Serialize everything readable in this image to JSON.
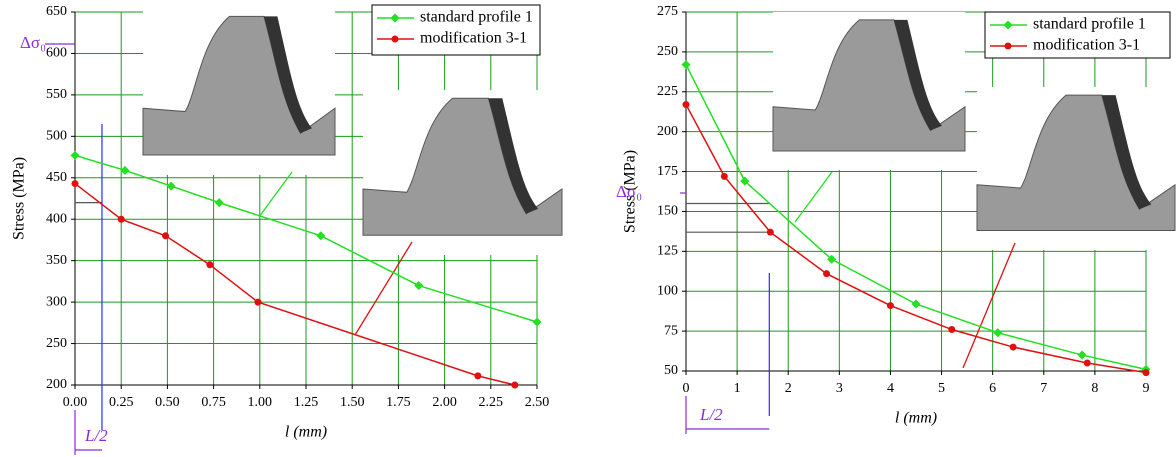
{
  "chart_data": [
    {
      "type": "line",
      "x_label": "l (mm)",
      "y_label": "Stress (MPa)",
      "xlim": [
        0,
        2.5
      ],
      "ylim": [
        200,
        650
      ],
      "xticks": [
        {
          "value": 0,
          "label": "0.00"
        },
        {
          "value": 0.25,
          "label": "0.25"
        },
        {
          "value": 0.5,
          "label": "0.50"
        },
        {
          "value": 0.75,
          "label": "0.75"
        },
        {
          "value": 1,
          "label": "1.00"
        },
        {
          "value": 1.25,
          "label": "1.25"
        },
        {
          "value": 1.5,
          "label": "1.50"
        },
        {
          "value": 1.75,
          "label": "1.75"
        },
        {
          "value": 2,
          "label": "2.00"
        },
        {
          "value": 2.25,
          "label": "2.25"
        },
        {
          "value": 2.5,
          "label": "2.50"
        }
      ],
      "yticks": [
        200,
        250,
        300,
        350,
        400,
        450,
        500,
        550,
        600,
        650
      ],
      "grid": true,
      "legend": "top-right",
      "annotations": [
        "Δσ₀",
        "L/2"
      ],
      "ref_x": 0.146,
      "ref_y": [
        420
      ],
      "series": [
        {
          "name": "standard profile 1",
          "color": "#22e022",
          "marker": "diamond",
          "x": [
            0,
            0.27,
            0.52,
            0.78,
            1.33,
            1.86,
            2.5
          ],
          "values": [
            477,
            459,
            440,
            420,
            380,
            320,
            276
          ]
        },
        {
          "name": "modification 3-1",
          "color": "#e01010",
          "marker": "circle",
          "x": [
            0,
            0.25,
            0.49,
            0.73,
            0.99,
            2.18,
            2.38
          ],
          "values": [
            443,
            400,
            380,
            345,
            300,
            211,
            200
          ]
        }
      ]
    },
    {
      "type": "line",
      "x_label": "l (mm)",
      "y_label": "Stress (MPa)",
      "xlim": [
        0,
        9
      ],
      "ylim": [
        50,
        275
      ],
      "xticks": [
        0,
        1,
        2,
        3,
        4,
        5,
        6,
        7,
        8,
        9
      ],
      "yticks": [
        50,
        75,
        100,
        125,
        150,
        175,
        200,
        225,
        250,
        275
      ],
      "grid": true,
      "legend": "top-right",
      "annotations": [
        "Δσ₀",
        "L/2"
      ],
      "ref_x": 1.63,
      "ref_y": [
        155,
        137
      ],
      "series": [
        {
          "name": "standard profile 1",
          "color": "#22e022",
          "marker": "diamond",
          "x": [
            0,
            1.15,
            2.85,
            4.5,
            6.1,
            7.75,
            9
          ],
          "values": [
            242,
            169,
            120,
            92,
            74,
            60,
            51
          ]
        },
        {
          "name": "modification 3-1",
          "color": "#e01010",
          "marker": "circle",
          "x": [
            0,
            0.75,
            1.65,
            2.75,
            4,
            5.2,
            6.4,
            7.85,
            9
          ],
          "values": [
            217,
            172,
            137,
            111,
            91,
            76,
            65,
            55,
            49
          ]
        }
      ]
    }
  ]
}
